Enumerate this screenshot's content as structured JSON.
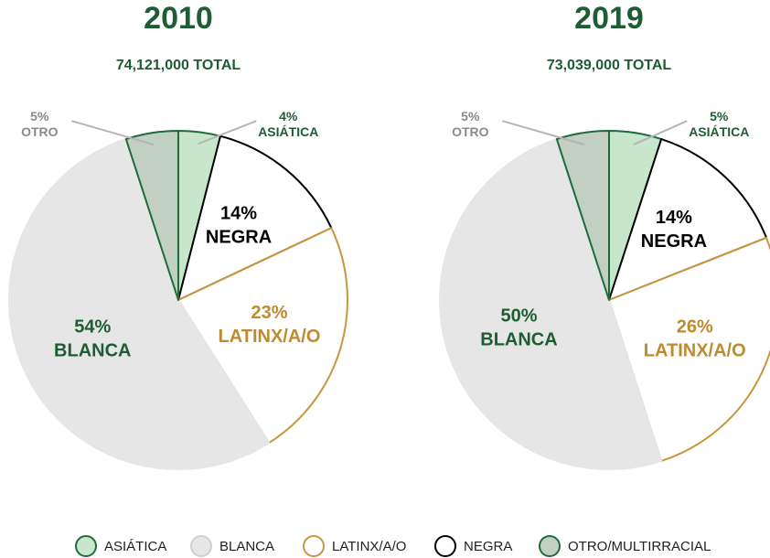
{
  "chart_data": [
    {
      "type": "pie",
      "title": "2010",
      "subtitle": "74,121,000 TOTAL",
      "categories": [
        "ASIÁTICA",
        "NEGRA",
        "LATINX/A/O",
        "BLANCA",
        "OTRO"
      ],
      "values": [
        4,
        14,
        23,
        54,
        5
      ],
      "value_labels": [
        "4%",
        "14%",
        "23%",
        "54%",
        "5%"
      ],
      "colors": [
        "#c8e6cc",
        "#ffffff",
        "#ffffff",
        "#e6e6e6",
        "#c2cfc3"
      ],
      "edge_colors": [
        "#1e6b3c",
        "#000000",
        "#c8963e",
        "#e6e6e6",
        "#1e6b3c"
      ],
      "label_colors": [
        "#1e5c34",
        "#000000",
        "#c08a2f",
        "#1e5c34",
        "#8a8a8a"
      ]
    },
    {
      "type": "pie",
      "title": "2019",
      "subtitle": "73,039,000 TOTAL",
      "categories": [
        "ASIÁTICA",
        "NEGRA",
        "LATINX/A/O",
        "BLANCA",
        "OTRO"
      ],
      "values": [
        5,
        14,
        26,
        50,
        5
      ],
      "value_labels": [
        "5%",
        "14%",
        "26%",
        "50%",
        "5%"
      ],
      "colors": [
        "#c8e6cc",
        "#ffffff",
        "#ffffff",
        "#e6e6e6",
        "#c2cfc3"
      ],
      "edge_colors": [
        "#1e6b3c",
        "#000000",
        "#c8963e",
        "#e6e6e6",
        "#1e6b3c"
      ],
      "label_colors": [
        "#1e5c34",
        "#000000",
        "#c08a2f",
        "#1e5c34",
        "#8a8a8a"
      ]
    }
  ],
  "legend": [
    {
      "name": "ASIÁTICA",
      "color": "#c8e6cc",
      "edge_color": "#1e6b3c"
    },
    {
      "name": "BLANCA",
      "color": "#e6e6e6",
      "edge_color": "#cfcfcf"
    },
    {
      "name": "LATINX/A/O",
      "color": "#ffffff",
      "edge_color": "#c8963e"
    },
    {
      "name": "NEGRA",
      "color": "#ffffff",
      "edge_color": "#000000"
    },
    {
      "name": "OTRO/MULTIRRACIAL",
      "color": "#c2cfc3",
      "edge_color": "#1e6b3c"
    }
  ]
}
